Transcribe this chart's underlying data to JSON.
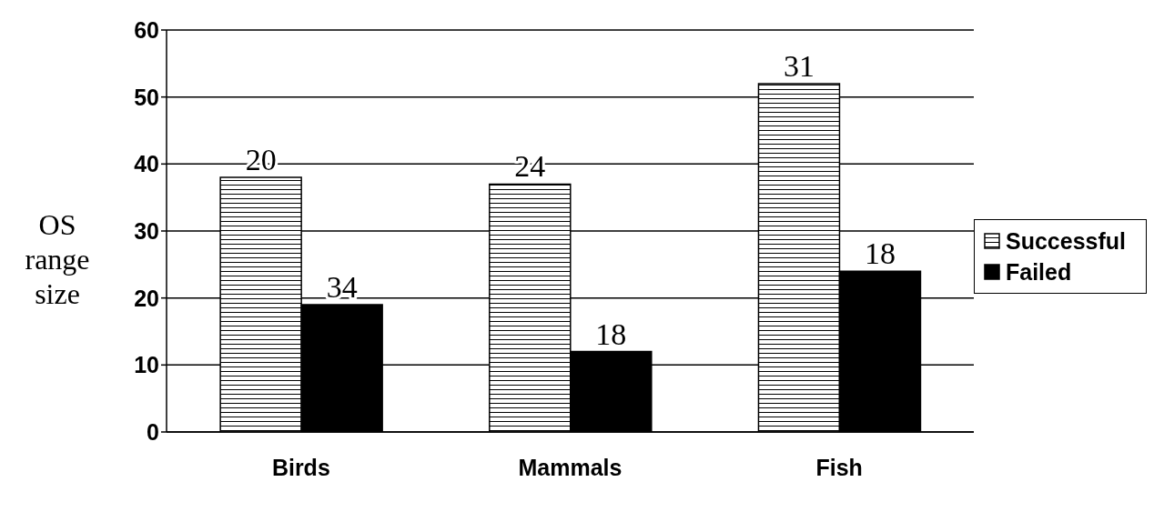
{
  "chart_data": {
    "type": "bar",
    "ylabel": "OS range size",
    "categories": [
      "Birds",
      "Mammals",
      "Fish"
    ],
    "series": [
      {
        "name": "Successful",
        "color": "#000000",
        "values": [
          38,
          37,
          52
        ]
      },
      {
        "name": "Failed",
        "color": "#000000",
        "values": [
          19,
          12,
          24
        ]
      }
    ],
    "annotations": [
      {
        "text": "20",
        "x": "Birds",
        "y": 38
      },
      {
        "text": "34",
        "x": "Birds",
        "y": 19
      },
      {
        "text": "24",
        "x": "Mammals",
        "y": 37
      },
      {
        "text": "18",
        "x": "Mammals",
        "y": 12
      },
      {
        "text": "31",
        "x": "Fish",
        "y": 52
      },
      {
        "text": "18",
        "x": "Fish",
        "y": 24
      }
    ],
    "ylim": [
      0,
      60
    ],
    "yticks": [
      0,
      10,
      20,
      30,
      40,
      50,
      60
    ],
    "grid": "y",
    "legend": "right"
  }
}
